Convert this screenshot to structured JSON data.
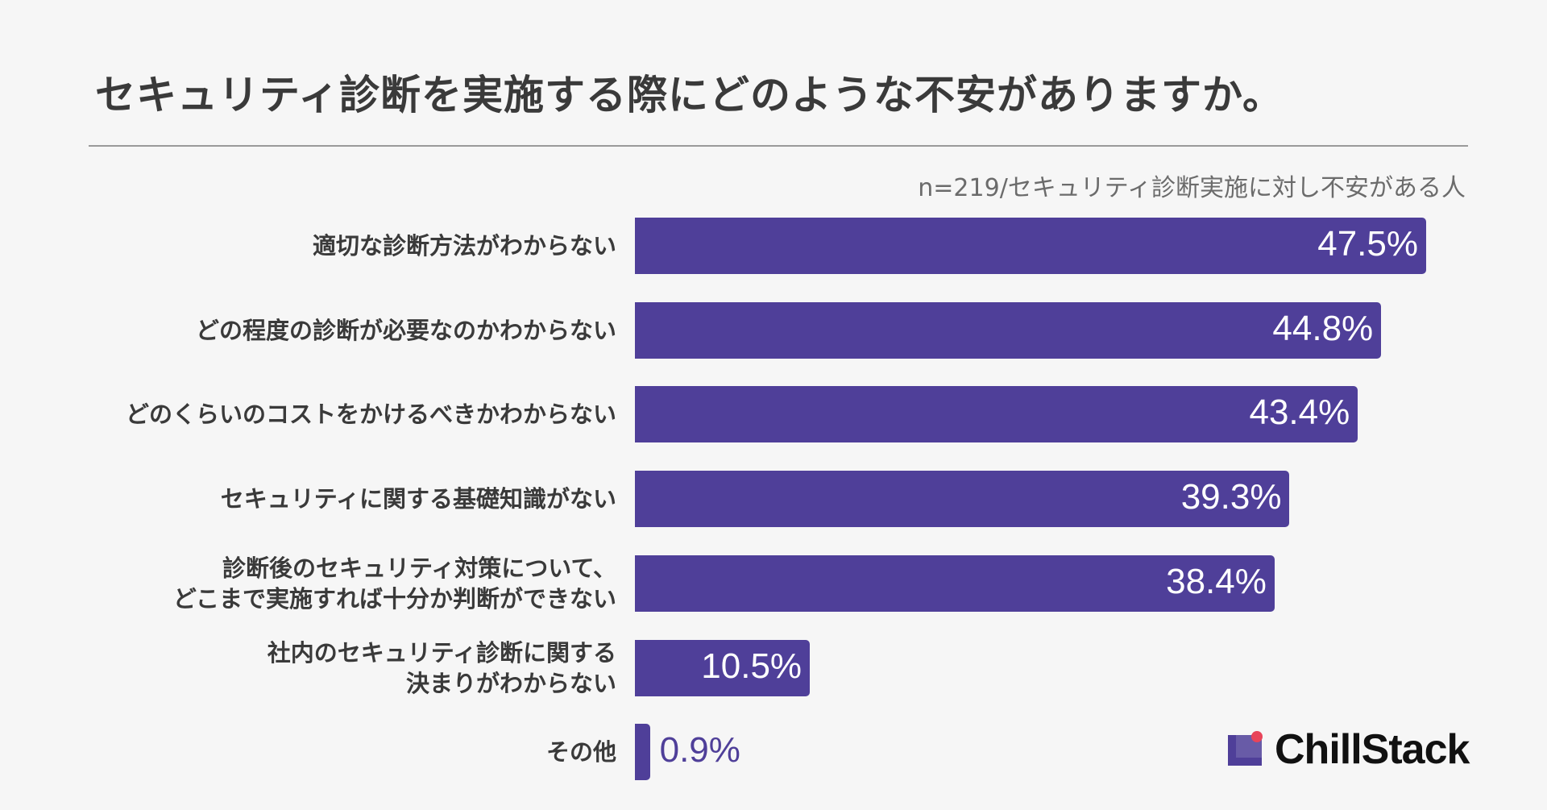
{
  "header": {
    "title": "セキュリティ診断を実施する際にどのような不安がありますか。",
    "sample": "n=219/セキュリティ診断実施に対し不安がある人"
  },
  "brand": {
    "name": "ChillStack",
    "accent": "#e8445a"
  },
  "colors": {
    "bar": "#4f3f99",
    "background": "#f6f6f6"
  },
  "chart_data": {
    "type": "bar",
    "orientation": "horizontal",
    "unit": "%",
    "xlim": [
      0,
      50
    ],
    "grid": false,
    "categories": [
      [
        "適切な診断方法がわからない"
      ],
      [
        "どの程度の診断が必要なのかわからない"
      ],
      [
        "どのくらいのコストをかけるべきかわからない"
      ],
      [
        "セキュリティに関する基礎知識がない"
      ],
      [
        "診断後のセキュリティ対策について、",
        "どこまで実施すれば十分か判断ができない"
      ],
      [
        "社内のセキュリティ診断に関する",
        "決まりがわからない"
      ],
      [
        "その他"
      ]
    ],
    "values": [
      47.5,
      44.8,
      43.4,
      39.3,
      38.4,
      10.5,
      0.9
    ],
    "value_labels": [
      "47.5%",
      "44.8%",
      "43.4%",
      "39.3%",
      "38.4%",
      "10.5%",
      "0.9%"
    ]
  }
}
